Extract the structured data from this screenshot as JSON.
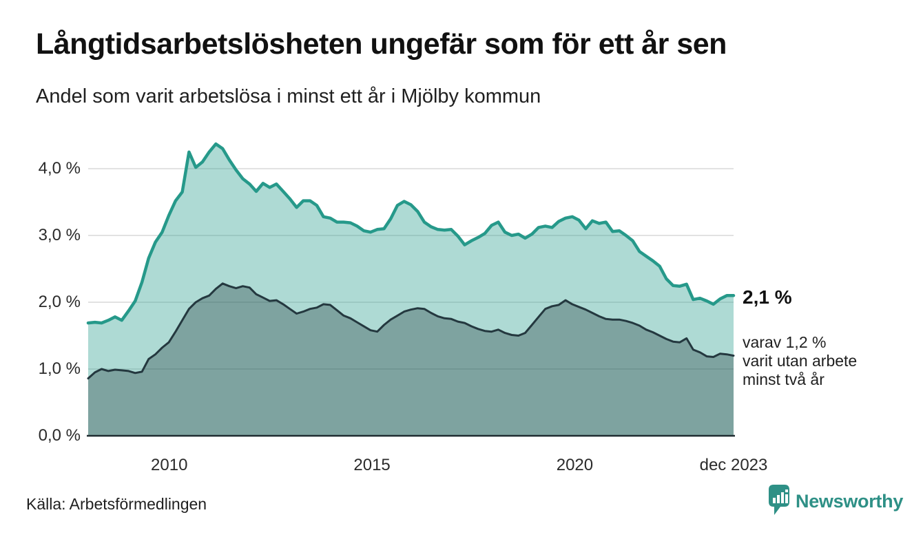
{
  "header": {
    "title": "Långtidsarbetslösheten ungefär som för ett år sen",
    "subtitle": "Andel som varit arbetslösa i minst ett år i Mjölby kommun"
  },
  "chart_data": {
    "type": "area",
    "title": "Långtidsarbetslösheten ungefär som för ett år sen",
    "subtitle": "Andel som varit arbetslösa i minst ett år i Mjölby kommun",
    "unit": "%",
    "x_start": 2008.0,
    "x_end": 2023.9167,
    "ylim": [
      0,
      4.5
    ],
    "grid": true,
    "y_ticks": [
      {
        "label": "0,0 %",
        "value": 0
      },
      {
        "label": "1,0 %",
        "value": 1
      },
      {
        "label": "2,0 %",
        "value": 2
      },
      {
        "label": "3,0 %",
        "value": 3
      },
      {
        "label": "4,0 %",
        "value": 4
      }
    ],
    "x_ticks": [
      {
        "label": "2010",
        "x": 2010
      },
      {
        "label": "2015",
        "x": 2015
      },
      {
        "label": "2020",
        "x": 2020
      },
      {
        "label": "dec 2023",
        "x": 2023.9167
      }
    ],
    "series": [
      {
        "name": "arbetslösa minst ett år",
        "latest_value": 2.1,
        "color": "#26998a",
        "fill": "rgba(42,157,143,0.38)",
        "values": [
          1.69,
          1.7,
          1.69,
          1.73,
          1.78,
          1.73,
          1.87,
          2.02,
          2.3,
          2.66,
          2.9,
          3.05,
          3.3,
          3.52,
          3.65,
          4.25,
          4.02,
          4.1,
          4.25,
          4.37,
          4.3,
          4.13,
          3.98,
          3.85,
          3.77,
          3.66,
          3.78,
          3.72,
          3.77,
          3.66,
          3.55,
          3.42,
          3.52,
          3.52,
          3.45,
          3.28,
          3.26,
          3.2,
          3.2,
          3.19,
          3.14,
          3.07,
          3.05,
          3.09,
          3.1,
          3.25,
          3.45,
          3.51,
          3.46,
          3.36,
          3.2,
          3.13,
          3.09,
          3.08,
          3.09,
          2.99,
          2.86,
          2.92,
          2.97,
          3.03,
          3.15,
          3.2,
          3.05,
          3.0,
          3.02,
          2.96,
          3.02,
          3.12,
          3.14,
          3.12,
          3.21,
          3.26,
          3.28,
          3.23,
          3.1,
          3.22,
          3.18,
          3.2,
          3.06,
          3.07,
          3.0,
          2.92,
          2.76,
          2.69,
          2.62,
          2.54,
          2.35,
          2.25,
          2.24,
          2.27,
          2.04,
          2.06,
          2.02,
          1.97,
          2.05,
          2.1,
          2.1
        ]
      },
      {
        "name": "utan arbete minst två år",
        "latest_value": 1.2,
        "color": "#24383f",
        "fill": "rgba(31,51,56,0.33)",
        "values": [
          0.86,
          0.95,
          1.0,
          0.97,
          0.99,
          0.98,
          0.97,
          0.94,
          0.96,
          1.15,
          1.22,
          1.32,
          1.4,
          1.56,
          1.73,
          1.9,
          2.0,
          2.06,
          2.1,
          2.2,
          2.28,
          2.24,
          2.21,
          2.24,
          2.22,
          2.12,
          2.07,
          2.02,
          2.03,
          1.97,
          1.9,
          1.83,
          1.86,
          1.9,
          1.92,
          1.97,
          1.96,
          1.88,
          1.8,
          1.76,
          1.7,
          1.64,
          1.58,
          1.56,
          1.66,
          1.74,
          1.8,
          1.86,
          1.89,
          1.91,
          1.9,
          1.84,
          1.79,
          1.76,
          1.75,
          1.71,
          1.69,
          1.64,
          1.6,
          1.57,
          1.56,
          1.59,
          1.54,
          1.51,
          1.5,
          1.54,
          1.66,
          1.78,
          1.9,
          1.94,
          1.96,
          2.03,
          1.97,
          1.93,
          1.89,
          1.84,
          1.79,
          1.75,
          1.74,
          1.74,
          1.72,
          1.69,
          1.65,
          1.59,
          1.55,
          1.5,
          1.45,
          1.41,
          1.4,
          1.46,
          1.29,
          1.25,
          1.19,
          1.18,
          1.23,
          1.22,
          1.2
        ]
      }
    ],
    "annotations": {
      "latest_total": "2,1 %",
      "latest_detail_lines": [
        "varav 1,2 %",
        "varit utan arbete",
        "minst två år"
      ]
    },
    "legend": "none",
    "colors": {
      "grid": "#d9d9d9",
      "baseline": "#1f2c30",
      "background": "#ffffff"
    }
  },
  "footer": {
    "source": "Källa: Arbetsförmedlingen",
    "brand": "Newsworthy",
    "brand_color": "#2e9086"
  }
}
